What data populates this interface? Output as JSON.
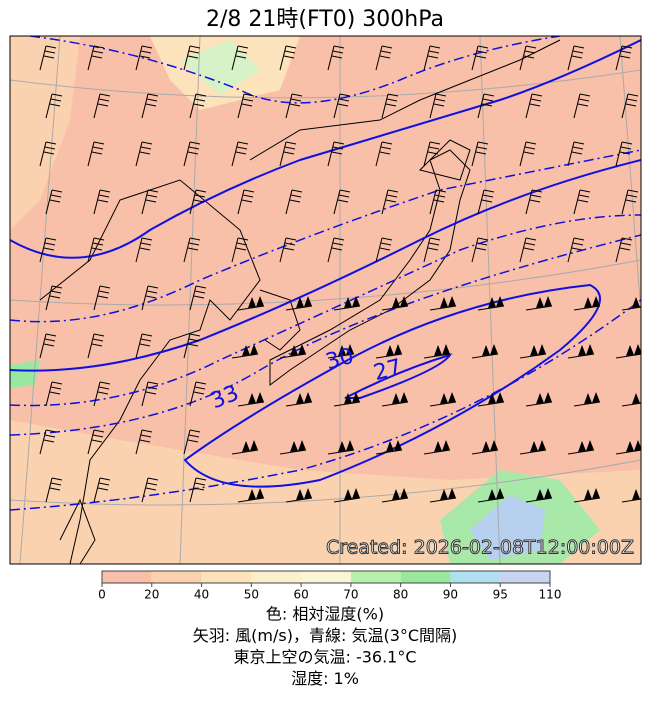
{
  "header": {
    "title": "2/8  21時(FT0)    300hPa"
  },
  "map": {
    "contour_labels": [
      "33",
      "30",
      "27"
    ],
    "watermark": "Created: 2026-02-08T12:00:00Z"
  },
  "colorbar": {
    "ticks": [
      0,
      20,
      40,
      50,
      60,
      70,
      80,
      90,
      95,
      110
    ],
    "colors": [
      "#f8c0a8",
      "#fbd2b0",
      "#fde3bc",
      "#fcefcc",
      "#f8f6d6",
      "#b8f0b0",
      "#98e8a0",
      "#b0e0f0",
      "#c8d4f0"
    ]
  },
  "footer": {
    "lines": [
      "色: 相対湿度(%)",
      "矢羽: 風(m/s)，青線: 気温(3°C間隔)",
      "東京上空の気温: -36.1°C",
      "湿度: 1%"
    ]
  }
}
